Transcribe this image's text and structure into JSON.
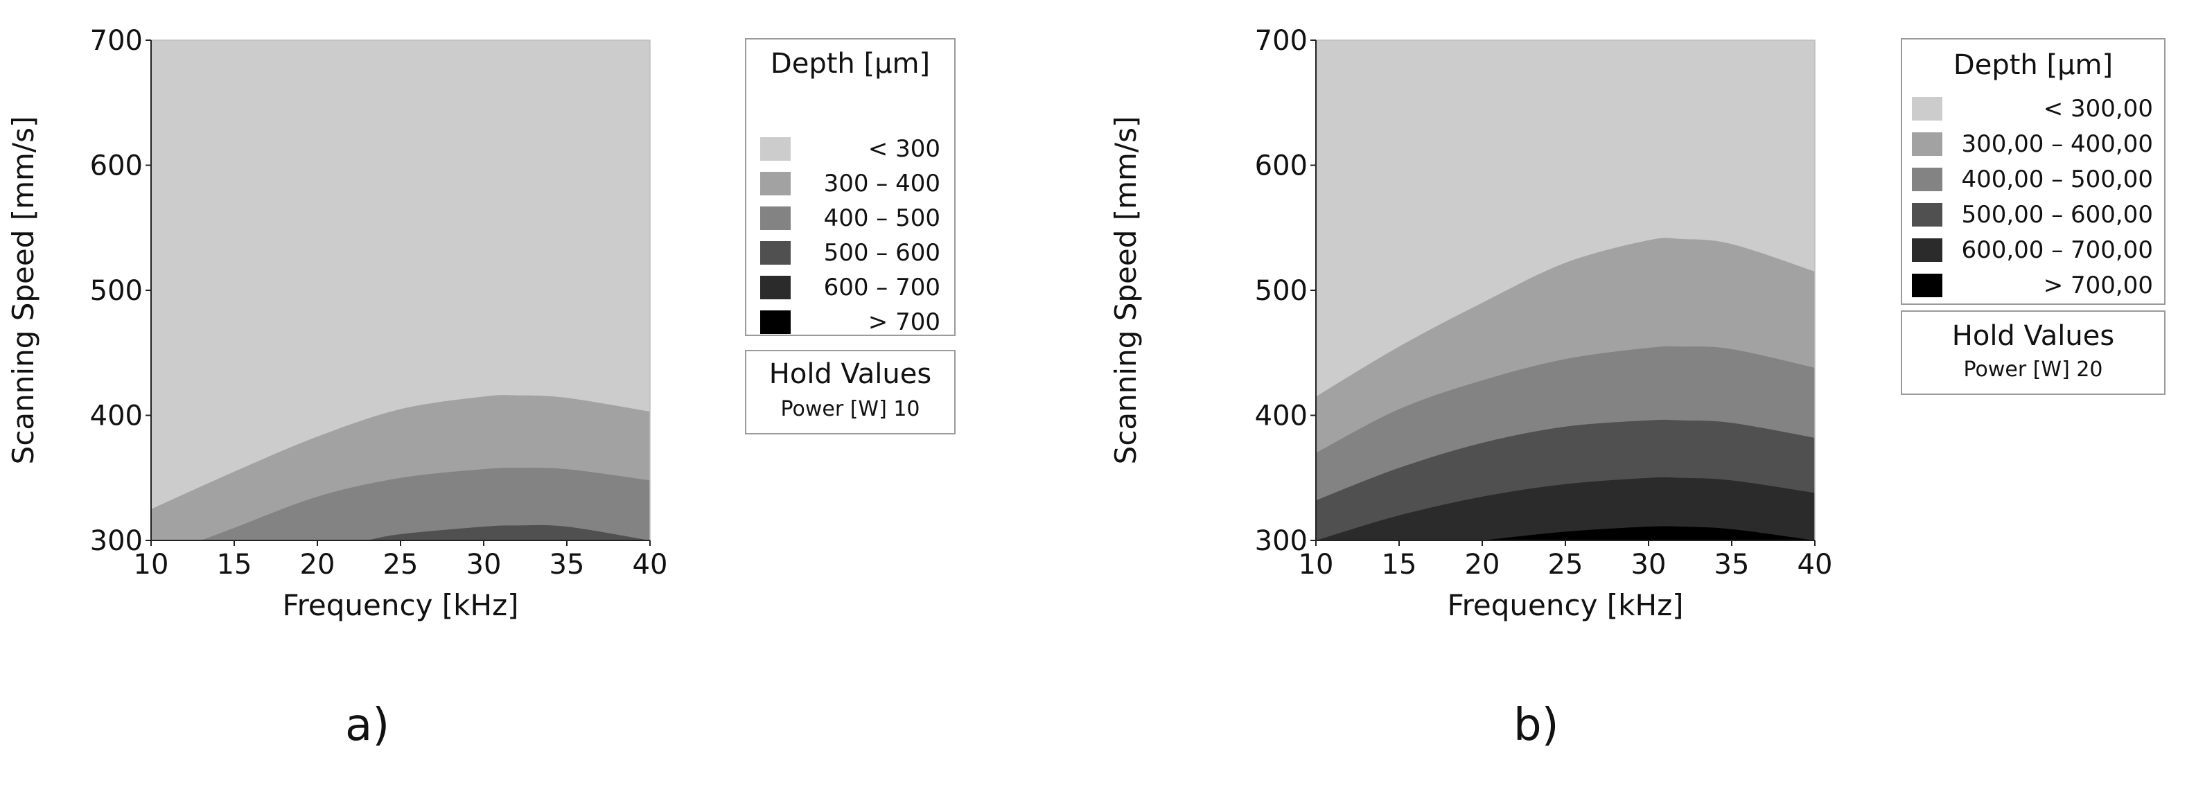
{
  "chart_data": [
    {
      "type": "heatmap",
      "subtype": "contour",
      "panel_label": "a)",
      "xlabel": "Frequency [kHz]",
      "ylabel": "Scanning Speed [mm/s]",
      "xlim": [
        10,
        40
      ],
      "ylim": [
        300,
        700
      ],
      "xticks": [
        10,
        15,
        20,
        25,
        30,
        35,
        40
      ],
      "yticks": [
        300,
        400,
        500,
        600,
        700
      ],
      "legend": {
        "title": "Depth [µm]",
        "levels": [
          {
            "label": "< 300",
            "color": "#cccccc"
          },
          {
            "label": "300 – 400",
            "color": "#a2a2a2"
          },
          {
            "label": "400 – 500",
            "color": "#838383"
          },
          {
            "label": "500 – 600",
            "color": "#505050"
          },
          {
            "label": "600 – 700",
            "color": "#2b2b2b"
          },
          {
            "label": "> 700",
            "color": "#000000"
          }
        ]
      },
      "hold_values": {
        "title": "Hold Values",
        "line": "Power [W]  10"
      },
      "contours": [
        {
          "level": 300,
          "x": [
            10,
            15,
            20,
            25,
            30,
            32,
            35,
            40
          ],
          "y": [
            325,
            355,
            383,
            405,
            415,
            416,
            414,
            403
          ]
        },
        {
          "level": 400,
          "x": [
            13,
            15,
            20,
            25,
            30,
            32,
            35,
            40
          ],
          "y": [
            300,
            310,
            335,
            350,
            357,
            358,
            357,
            348
          ]
        },
        {
          "level": 500,
          "x": [
            23,
            25,
            30,
            32,
            35,
            40
          ],
          "y": [
            300,
            305,
            311,
            312,
            311,
            300
          ]
        }
      ]
    },
    {
      "type": "heatmap",
      "subtype": "contour",
      "panel_label": "b)",
      "xlabel": "Frequency [kHz]",
      "ylabel": "Scanning Speed [mm/s]",
      "xlim": [
        10,
        40
      ],
      "ylim": [
        300,
        700
      ],
      "xticks": [
        10,
        15,
        20,
        25,
        30,
        35,
        40
      ],
      "yticks": [
        300,
        400,
        500,
        600,
        700
      ],
      "legend": {
        "title": "Depth [µm]",
        "levels": [
          {
            "label": "< 300,00",
            "color": "#cccccc"
          },
          {
            "label": "300,00  –  400,00",
            "color": "#a2a2a2"
          },
          {
            "label": "400,00  –  500,00",
            "color": "#838383"
          },
          {
            "label": "500,00  –  600,00",
            "color": "#505050"
          },
          {
            "label": "600,00  –  700,00",
            "color": "#2b2b2b"
          },
          {
            "label": "> 700,00",
            "color": "#000000"
          }
        ]
      },
      "hold_values": {
        "title": "Hold Values",
        "line": "Power [W]  20"
      },
      "contours": [
        {
          "level": 300,
          "x": [
            10,
            15,
            20,
            25,
            30,
            32,
            35,
            40
          ],
          "y": [
            415,
            455,
            490,
            522,
            540,
            541,
            537,
            515
          ]
        },
        {
          "level": 400,
          "x": [
            10,
            15,
            20,
            25,
            30,
            32,
            35,
            40
          ],
          "y": [
            370,
            405,
            428,
            445,
            454,
            455,
            453,
            438
          ]
        },
        {
          "level": 500,
          "x": [
            10,
            15,
            20,
            25,
            30,
            32,
            35,
            40
          ],
          "y": [
            332,
            358,
            378,
            391,
            396,
            396,
            394,
            382
          ]
        },
        {
          "level": 600,
          "x": [
            10,
            15,
            20,
            25,
            30,
            32,
            35,
            40
          ],
          "y": [
            300,
            320,
            335,
            345,
            350,
            350,
            348,
            338
          ]
        },
        {
          "level": 700,
          "x": [
            20,
            25,
            30,
            32,
            35,
            40
          ],
          "y": [
            300,
            307,
            311,
            311,
            309,
            300
          ]
        }
      ]
    }
  ]
}
